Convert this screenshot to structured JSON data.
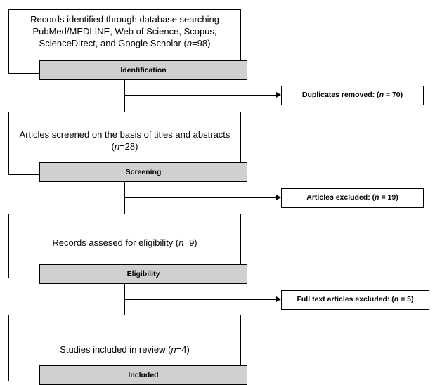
{
  "stages": [
    {
      "box_lines": [
        "Records identified through database searching",
        "PubMed/MEDLINE, Web of Science, Scopus,",
        "ScienceDirect, and Google Scholar (",
        "=98)"
      ],
      "stage_label": "Identification"
    },
    {
      "box_lines": [
        "Articles screened on the basis of titles and abstracts",
        "(",
        "=28)"
      ],
      "stage_label": "Screening"
    },
    {
      "box_lines": [
        "Records assesed for eligibility (",
        "=9)"
      ],
      "stage_label": "Eligibility"
    },
    {
      "box_lines": [
        "Studies included in review (",
        "=4)"
      ],
      "stage_label": "Included"
    }
  ],
  "n_symbol": "n",
  "exclusions": [
    {
      "label": "Duplicates  removed: (",
      "n": "n",
      "value": " = 70)"
    },
    {
      "label": "Articles excluded: (",
      "n": "n",
      "value": " = 19)"
    },
    {
      "label": "Full text articles excluded: (",
      "n": "n",
      "value": " = 5)"
    }
  ]
}
